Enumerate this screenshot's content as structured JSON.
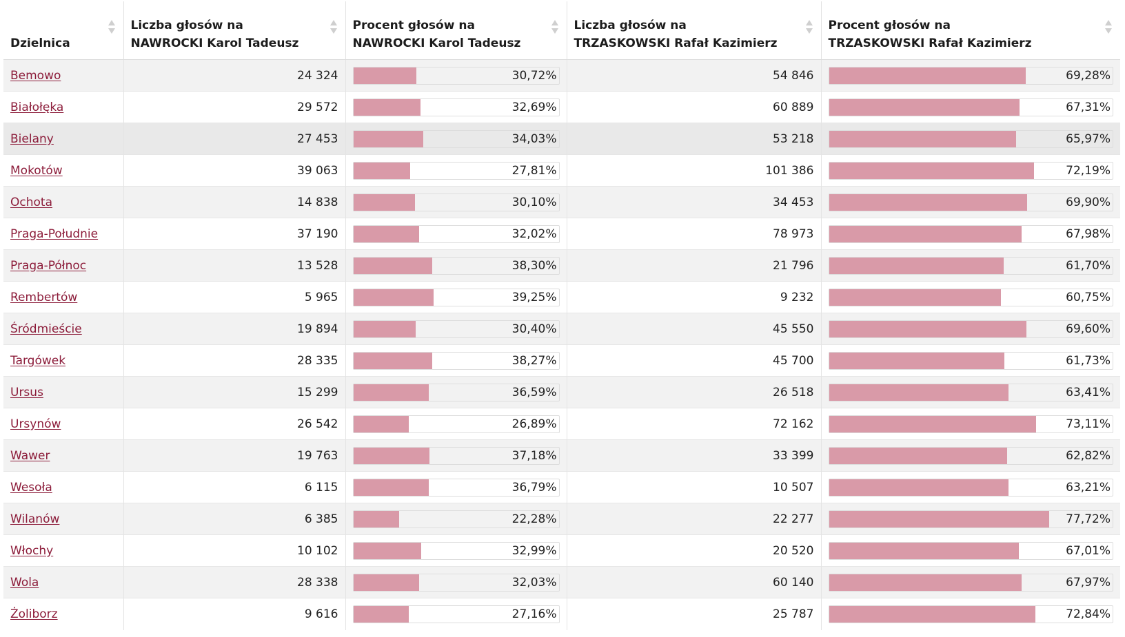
{
  "table": {
    "headers": [
      {
        "line1": "Dzielnica",
        "line2": ""
      },
      {
        "line1": "Liczba głosów na",
        "line2": "NAWROCKI Karol Tadeusz"
      },
      {
        "line1": "Procent głosów na",
        "line2": "NAWROCKI Karol Tadeusz"
      },
      {
        "line1": "Liczba głosów na",
        "line2": "TRZASKOWSKI Rafał Kazimierz"
      },
      {
        "line1": "Procent głosów na",
        "line2": "TRZASKOWSKI Rafał Kazimierz"
      }
    ],
    "colors": {
      "bar": "#d99aa8",
      "link": "#8c1c3a"
    },
    "rows": [
      {
        "district": "Bemowo",
        "n_votes": "24 324",
        "n_pct": "30,72%",
        "n_frac": 0.3072,
        "t_votes": "54 846",
        "t_pct": "69,28%",
        "t_frac": 0.6928
      },
      {
        "district": "Białołęka",
        "n_votes": "29 572",
        "n_pct": "32,69%",
        "n_frac": 0.3269,
        "t_votes": "60 889",
        "t_pct": "67,31%",
        "t_frac": 0.6731
      },
      {
        "district": "Bielany",
        "n_votes": "27 453",
        "n_pct": "34,03%",
        "n_frac": 0.3403,
        "t_votes": "53 218",
        "t_pct": "65,97%",
        "t_frac": 0.6597
      },
      {
        "district": "Mokotów",
        "n_votes": "39 063",
        "n_pct": "27,81%",
        "n_frac": 0.2781,
        "t_votes": "101 386",
        "t_pct": "72,19%",
        "t_frac": 0.7219
      },
      {
        "district": "Ochota",
        "n_votes": "14 838",
        "n_pct": "30,10%",
        "n_frac": 0.301,
        "t_votes": "34 453",
        "t_pct": "69,90%",
        "t_frac": 0.699
      },
      {
        "district": "Praga-Południe",
        "n_votes": "37 190",
        "n_pct": "32,02%",
        "n_frac": 0.3202,
        "t_votes": "78 973",
        "t_pct": "67,98%",
        "t_frac": 0.6798
      },
      {
        "district": "Praga-Północ",
        "n_votes": "13 528",
        "n_pct": "38,30%",
        "n_frac": 0.383,
        "t_votes": "21 796",
        "t_pct": "61,70%",
        "t_frac": 0.617
      },
      {
        "district": "Rembertów",
        "n_votes": "5 965",
        "n_pct": "39,25%",
        "n_frac": 0.3925,
        "t_votes": "9 232",
        "t_pct": "60,75%",
        "t_frac": 0.6075
      },
      {
        "district": "Śródmieście",
        "n_votes": "19 894",
        "n_pct": "30,40%",
        "n_frac": 0.304,
        "t_votes": "45 550",
        "t_pct": "69,60%",
        "t_frac": 0.696
      },
      {
        "district": "Targówek",
        "n_votes": "28 335",
        "n_pct": "38,27%",
        "n_frac": 0.3827,
        "t_votes": "45 700",
        "t_pct": "61,73%",
        "t_frac": 0.6173
      },
      {
        "district": "Ursus",
        "n_votes": "15 299",
        "n_pct": "36,59%",
        "n_frac": 0.3659,
        "t_votes": "26 518",
        "t_pct": "63,41%",
        "t_frac": 0.6341
      },
      {
        "district": "Ursynów",
        "n_votes": "26 542",
        "n_pct": "26,89%",
        "n_frac": 0.2689,
        "t_votes": "72 162",
        "t_pct": "73,11%",
        "t_frac": 0.7311
      },
      {
        "district": "Wawer",
        "n_votes": "19 763",
        "n_pct": "37,18%",
        "n_frac": 0.3718,
        "t_votes": "33 399",
        "t_pct": "62,82%",
        "t_frac": 0.6282
      },
      {
        "district": "Wesoła",
        "n_votes": "6 115",
        "n_pct": "36,79%",
        "n_frac": 0.3679,
        "t_votes": "10 507",
        "t_pct": "63,21%",
        "t_frac": 0.6321
      },
      {
        "district": "Wilanów",
        "n_votes": "6 385",
        "n_pct": "22,28%",
        "n_frac": 0.2228,
        "t_votes": "22 277",
        "t_pct": "77,72%",
        "t_frac": 0.7772
      },
      {
        "district": "Włochy",
        "n_votes": "10 102",
        "n_pct": "32,99%",
        "n_frac": 0.3299,
        "t_votes": "20 520",
        "t_pct": "67,01%",
        "t_frac": 0.6701
      },
      {
        "district": "Wola",
        "n_votes": "28 338",
        "n_pct": "32,03%",
        "n_frac": 0.3203,
        "t_votes": "60 140",
        "t_pct": "67,97%",
        "t_frac": 0.6797
      },
      {
        "district": "Żoliborz",
        "n_votes": "9 616",
        "n_pct": "27,16%",
        "n_frac": 0.2716,
        "t_votes": "25 787",
        "t_pct": "72,84%",
        "t_frac": 0.7284
      }
    ]
  }
}
